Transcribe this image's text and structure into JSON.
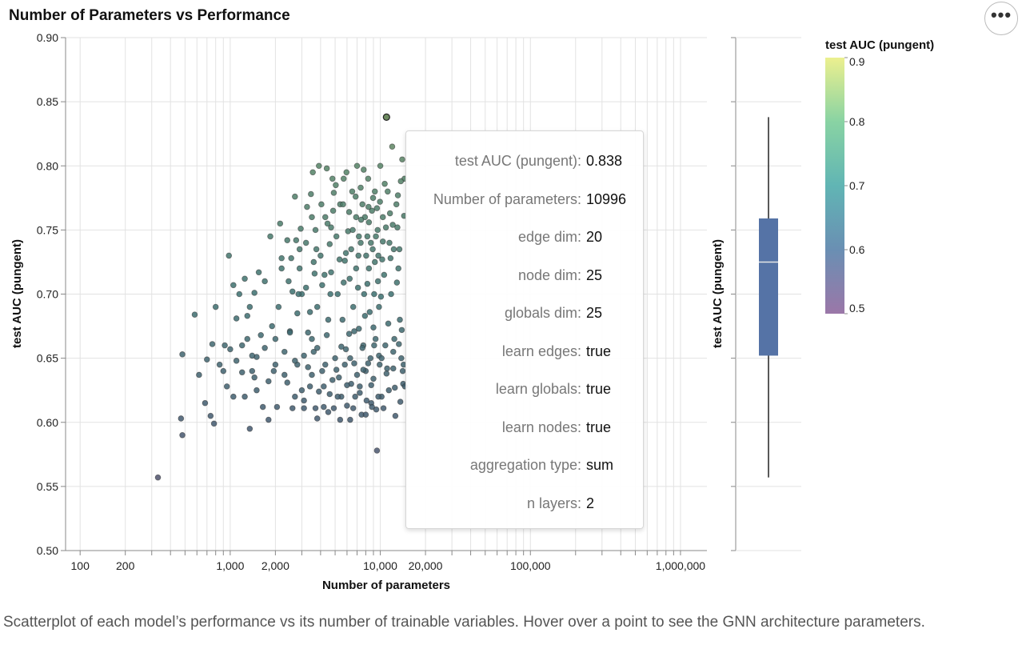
{
  "more_menu": {
    "icon": "ellipsis-icon",
    "glyph": "•••"
  },
  "caption": "Scatterplot of each model’s performance vs its number of trainable variables. Hover over a point to see the GNN architecture parameters.",
  "tooltip": {
    "rows": [
      {
        "key": "test AUC (pungent):",
        "value": "0.838"
      },
      {
        "key": "Number of parameters:",
        "value": "10996"
      },
      {
        "key": "edge dim:",
        "value": "20"
      },
      {
        "key": "node dim:",
        "value": "25"
      },
      {
        "key": "globals dim:",
        "value": "25"
      },
      {
        "key": "learn edges:",
        "value": "true"
      },
      {
        "key": "learn globals:",
        "value": "true"
      },
      {
        "key": "learn nodes:",
        "value": "true"
      },
      {
        "key": "aggregation type:",
        "value": "sum"
      },
      {
        "key": "n layers:",
        "value": "2"
      }
    ]
  },
  "chart_data": {
    "type": "scatter",
    "title": "Number of Parameters vs Performance",
    "xlabel": "Number of parameters",
    "ylabel": "test AUC (pungent)",
    "xscale": "log",
    "xlim": [
      80,
      1500000
    ],
    "ylim": [
      0.5,
      0.9
    ],
    "x_tick_labels": [
      {
        "value": 100,
        "label": "100"
      },
      {
        "value": 200,
        "label": "200"
      },
      {
        "value": 1000,
        "label": "1,000"
      },
      {
        "value": 2000,
        "label": "2,000"
      },
      {
        "value": 10000,
        "label": "10,000"
      },
      {
        "value": 20000,
        "label": "20,000"
      },
      {
        "value": 100000,
        "label": "100,000"
      },
      {
        "value": 1000000,
        "label": "1,000,000"
      }
    ],
    "y_ticks": [
      {
        "value": 0.5,
        "label": "0.50"
      },
      {
        "value": 0.55,
        "label": "0.55"
      },
      {
        "value": 0.6,
        "label": "0.60"
      },
      {
        "value": 0.65,
        "label": "0.65"
      },
      {
        "value": 0.7,
        "label": "0.70"
      },
      {
        "value": 0.75,
        "label": "0.75"
      },
      {
        "value": 0.8,
        "label": "0.80"
      },
      {
        "value": 0.85,
        "label": "0.85"
      },
      {
        "value": 0.9,
        "label": "0.90"
      }
    ],
    "highlighted_point": {
      "x": 10996,
      "y": 0.838
    },
    "points": [
      [
        330,
        0.557
      ],
      [
        480,
        0.59
      ],
      [
        470,
        0.603
      ],
      [
        480,
        0.653
      ],
      [
        580,
        0.684
      ],
      [
        620,
        0.637
      ],
      [
        680,
        0.615
      ],
      [
        700,
        0.649
      ],
      [
        740,
        0.605
      ],
      [
        780,
        0.599
      ],
      [
        760,
        0.661
      ],
      [
        800,
        0.69
      ],
      [
        850,
        0.645
      ],
      [
        920,
        0.66
      ],
      [
        980,
        0.73
      ],
      [
        1050,
        0.62
      ],
      [
        1100,
        0.681
      ],
      [
        1050,
        0.707
      ],
      [
        1200,
        0.66
      ],
      [
        1250,
        0.62
      ],
      [
        1300,
        0.683
      ],
      [
        1350,
        0.595
      ],
      [
        1400,
        0.64
      ],
      [
        1450,
        0.635
      ],
      [
        1500,
        0.651
      ],
      [
        1550,
        0.717
      ],
      [
        1650,
        0.612
      ],
      [
        1700,
        0.71
      ],
      [
        1800,
        0.602
      ],
      [
        1850,
        0.745
      ],
      [
        1950,
        0.64
      ],
      [
        2000,
        0.665
      ],
      [
        2050,
        0.612
      ],
      [
        2100,
        0.69
      ],
      [
        2200,
        0.72
      ],
      [
        2300,
        0.637
      ],
      [
        2400,
        0.742
      ],
      [
        2500,
        0.671
      ],
      [
        2600,
        0.611
      ],
      [
        2700,
        0.776
      ],
      [
        2800,
        0.645
      ],
      [
        2900,
        0.72
      ],
      [
        3000,
        0.7
      ],
      [
        3100,
        0.611
      ],
      [
        3200,
        0.74
      ],
      [
        3300,
        0.67
      ],
      [
        3400,
        0.628
      ],
      [
        3500,
        0.76
      ],
      [
        3600,
        0.655
      ],
      [
        3700,
        0.611
      ],
      [
        3800,
        0.69
      ],
      [
        3900,
        0.8
      ],
      [
        4000,
        0.73
      ],
      [
        4100,
        0.64
      ],
      [
        4200,
        0.612
      ],
      [
        4300,
        0.76
      ],
      [
        4400,
        0.798
      ],
      [
        4500,
        0.68
      ],
      [
        4600,
        0.622
      ],
      [
        4700,
        0.717
      ],
      [
        4800,
        0.79
      ],
      [
        4900,
        0.611
      ],
      [
        5000,
        0.65
      ],
      [
        5100,
        0.745
      ],
      [
        5200,
        0.7
      ],
      [
        5300,
        0.635
      ],
      [
        5400,
        0.77
      ],
      [
        5500,
        0.62
      ],
      [
        5600,
        0.68
      ],
      [
        5700,
        0.79
      ],
      [
        5800,
        0.726
      ],
      [
        5900,
        0.657
      ],
      [
        6000,
        0.613
      ],
      [
        6100,
        0.749
      ],
      [
        6200,
        0.669
      ],
      [
        6300,
        0.602
      ],
      [
        6400,
        0.735
      ],
      [
        6500,
        0.78
      ],
      [
        6600,
        0.69
      ],
      [
        6700,
        0.646
      ],
      [
        6800,
        0.62
      ],
      [
        6900,
        0.76
      ],
      [
        7000,
        0.8
      ],
      [
        7100,
        0.705
      ],
      [
        7200,
        0.673
      ],
      [
        7300,
        0.628
      ],
      [
        7400,
        0.74
      ],
      [
        7500,
        0.606
      ],
      [
        7600,
        0.77
      ],
      [
        7700,
        0.66
      ],
      [
        7800,
        0.7
      ],
      [
        7900,
        0.76
      ],
      [
        8000,
        0.64
      ],
      [
        8100,
        0.617
      ],
      [
        8200,
        0.745
      ],
      [
        8300,
        0.79
      ],
      [
        8400,
        0.72
      ],
      [
        8500,
        0.686
      ],
      [
        8600,
        0.65
      ],
      [
        8700,
        0.615
      ],
      [
        8800,
        0.765
      ],
      [
        8900,
        0.735
      ],
      [
        9000,
        0.634
      ],
      [
        9100,
        0.7
      ],
      [
        9200,
        0.78
      ],
      [
        9300,
        0.665
      ],
      [
        9400,
        0.61
      ],
      [
        9500,
        0.578
      ],
      [
        9600,
        0.75
      ],
      [
        9700,
        0.73
      ],
      [
        9800,
        0.69
      ],
      [
        9900,
        0.645
      ],
      [
        10000,
        0.8
      ],
      [
        10200,
        0.62
      ],
      [
        10400,
        0.76
      ],
      [
        10600,
        0.715
      ],
      [
        10800,
        0.66
      ],
      [
        10996,
        0.838
      ],
      [
        11200,
        0.78
      ],
      [
        11500,
        0.74
      ],
      [
        11800,
        0.7
      ],
      [
        12000,
        0.815
      ],
      [
        12200,
        0.642
      ],
      [
        12500,
        0.627
      ],
      [
        12800,
        0.77
      ],
      [
        13000,
        0.752
      ],
      [
        13200,
        0.72
      ],
      [
        13500,
        0.68
      ],
      [
        13800,
        0.65
      ],
      [
        14000,
        0.805
      ],
      [
        14200,
        0.63
      ],
      [
        14500,
        0.79
      ],
      [
        3100,
        0.652
      ],
      [
        3300,
        0.643
      ],
      [
        3500,
        0.665
      ],
      [
        3200,
        0.705
      ],
      [
        3600,
        0.725
      ],
      [
        3700,
        0.75
      ],
      [
        3400,
        0.686
      ],
      [
        3800,
        0.658
      ],
      [
        3900,
        0.624
      ],
      [
        4100,
        0.707
      ],
      [
        4300,
        0.645
      ],
      [
        4400,
        0.668
      ],
      [
        4600,
        0.739
      ],
      [
        4700,
        0.752
      ],
      [
        4900,
        0.779
      ],
      [
        5200,
        0.62
      ],
      [
        5500,
        0.659
      ],
      [
        5700,
        0.709
      ],
      [
        5900,
        0.732
      ],
      [
        6200,
        0.764
      ],
      [
        6400,
        0.63
      ],
      [
        6700,
        0.671
      ],
      [
        6900,
        0.72
      ],
      [
        7200,
        0.745
      ],
      [
        7400,
        0.783
      ],
      [
        7700,
        0.641
      ],
      [
        7900,
        0.683
      ],
      [
        8200,
        0.708
      ],
      [
        8400,
        0.756
      ],
      [
        8700,
        0.629
      ],
      [
        9000,
        0.674
      ],
      [
        9200,
        0.725
      ],
      [
        9500,
        0.767
      ],
      [
        9800,
        0.652
      ],
      [
        10100,
        0.698
      ],
      [
        10400,
        0.741
      ],
      [
        10700,
        0.786
      ],
      [
        11000,
        0.638
      ],
      [
        11300,
        0.677
      ],
      [
        11700,
        0.728
      ],
      [
        12100,
        0.754
      ],
      [
        12400,
        0.665
      ],
      [
        12900,
        0.709
      ],
      [
        13400,
        0.735
      ],
      [
        13900,
        0.672
      ],
      [
        14300,
        0.645
      ],
      [
        2300,
        0.655
      ],
      [
        2400,
        0.631
      ],
      [
        2500,
        0.67
      ],
      [
        2600,
        0.702
      ],
      [
        2700,
        0.648
      ],
      [
        2800,
        0.685
      ],
      [
        2900,
        0.735
      ],
      [
        3000,
        0.625
      ],
      [
        2200,
        0.728
      ],
      [
        2000,
        0.645
      ],
      [
        1900,
        0.675
      ],
      [
        1800,
        0.632
      ],
      [
        1700,
        0.658
      ],
      [
        1600,
        0.668
      ],
      [
        1500,
        0.625
      ],
      [
        1400,
        0.652
      ],
      [
        1300,
        0.665
      ],
      [
        1200,
        0.639
      ],
      [
        1100,
        0.648
      ],
      [
        1000,
        0.657
      ],
      [
        950,
        0.628
      ],
      [
        900,
        0.64
      ],
      [
        1150,
        0.7
      ],
      [
        1250,
        0.712
      ],
      [
        1350,
        0.69
      ],
      [
        1450,
        0.701
      ],
      [
        2150,
        0.755
      ],
      [
        2450,
        0.71
      ],
      [
        2550,
        0.728
      ],
      [
        2750,
        0.742
      ],
      [
        2850,
        0.7
      ],
      [
        2950,
        0.751
      ],
      [
        3250,
        0.768
      ],
      [
        3450,
        0.778
      ],
      [
        3550,
        0.795
      ],
      [
        3650,
        0.716
      ],
      [
        3750,
        0.735
      ],
      [
        4050,
        0.77
      ],
      [
        4250,
        0.715
      ],
      [
        4450,
        0.755
      ],
      [
        4650,
        0.7
      ],
      [
        4850,
        0.765
      ],
      [
        5050,
        0.785
      ],
      [
        5350,
        0.727
      ],
      [
        5650,
        0.77
      ],
      [
        5950,
        0.795
      ],
      [
        6250,
        0.712
      ],
      [
        6550,
        0.75
      ],
      [
        6850,
        0.776
      ],
      [
        7150,
        0.73
      ],
      [
        7450,
        0.758
      ],
      [
        7750,
        0.797
      ],
      [
        8050,
        0.73
      ],
      [
        8350,
        0.768
      ],
      [
        8650,
        0.74
      ],
      [
        8950,
        0.775
      ],
      [
        9350,
        0.745
      ],
      [
        9650,
        0.71
      ],
      [
        9950,
        0.772
      ],
      [
        10300,
        0.727
      ],
      [
        10900,
        0.752
      ],
      [
        11600,
        0.763
      ],
      [
        12300,
        0.735
      ],
      [
        13100,
        0.777
      ],
      [
        13700,
        0.788
      ],
      [
        14400,
        0.761
      ],
      [
        3800,
        0.603
      ],
      [
        4500,
        0.608
      ],
      [
        5400,
        0.602
      ],
      [
        6000,
        0.629
      ],
      [
        6600,
        0.611
      ],
      [
        7300,
        0.623
      ],
      [
        8000,
        0.606
      ],
      [
        8800,
        0.612
      ],
      [
        9700,
        0.62
      ],
      [
        10500,
        0.611
      ],
      [
        11400,
        0.625
      ],
      [
        12600,
        0.605
      ],
      [
        13600,
        0.616
      ],
      [
        14600,
        0.628
      ],
      [
        2700,
        0.62
      ],
      [
        3100,
        0.617
      ],
      [
        3500,
        0.637
      ],
      [
        4200,
        0.628
      ],
      [
        4800,
        0.633
      ],
      [
        5100,
        0.641
      ],
      [
        5800,
        0.645
      ],
      [
        6300,
        0.65
      ],
      [
        7000,
        0.637
      ],
      [
        7600,
        0.658
      ],
      [
        8300,
        0.646
      ],
      [
        9100,
        0.66
      ],
      [
        10200,
        0.65
      ],
      [
        11100,
        0.642
      ],
      [
        12200,
        0.655
      ],
      [
        13300,
        0.661
      ],
      [
        14100,
        0.64
      ]
    ]
  },
  "colorbar": {
    "title": "test AUC (pungent)",
    "domain": [
      0.5,
      0.9
    ],
    "ticks": [
      {
        "value": 0.9,
        "label": "0.9"
      },
      {
        "value": 0.8,
        "label": "0.8"
      },
      {
        "value": 0.7,
        "label": "0.7"
      },
      {
        "value": 0.6,
        "label": "0.6"
      },
      {
        "value": 0.5,
        "label": "0.5"
      }
    ],
    "colors": [
      "#9b77a8",
      "#6a8fb3",
      "#61b5b4",
      "#89d3a3",
      "#ecf08f"
    ]
  },
  "boxplot": {
    "ylabel": "test AUC (pungent)",
    "min": 0.557,
    "q1": 0.652,
    "median": 0.725,
    "q3": 0.759,
    "max": 0.838,
    "color": "#5573a6"
  }
}
